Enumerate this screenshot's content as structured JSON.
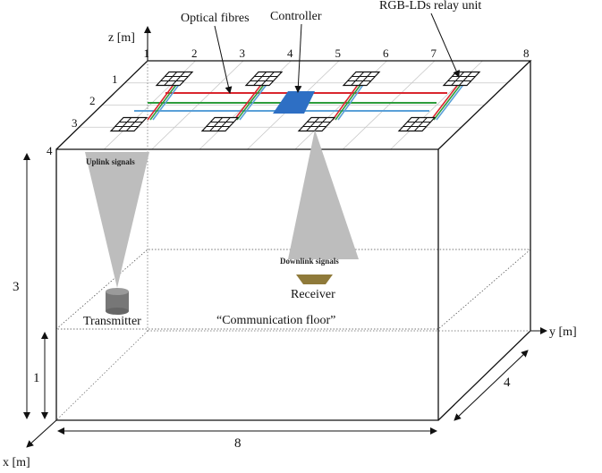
{
  "labels": {
    "optical_fibres": "Optical fibres",
    "controller": "Controller",
    "relay_unit": "RGB-LDs relay unit",
    "z_axis": "z [m]",
    "y_axis": "y [m]",
    "x_axis": "x [m]",
    "uplink": "Uplink signals",
    "downlink": "Downlink signals",
    "receiver": "Receiver",
    "transmitter": "Transmitter",
    "floor": "“Communication floor”"
  },
  "ceiling_grid": {
    "column_numbers": [
      "1",
      "2",
      "3",
      "4",
      "5",
      "6",
      "7",
      "8"
    ],
    "row_numbers": [
      "1",
      "2",
      "3",
      "4"
    ]
  },
  "dimensions": {
    "width": "8",
    "depth": "4",
    "height": "3",
    "floor_height": "1"
  },
  "colors": {
    "fibre_red": "#d9262e",
    "fibre_green": "#2e9c3c",
    "fibre_blue": "#5aa0d8",
    "controller": "#2e6fc4",
    "receiver": "#8f7a3a",
    "transmitter": "#777777",
    "beam": "#bdbdbd"
  }
}
